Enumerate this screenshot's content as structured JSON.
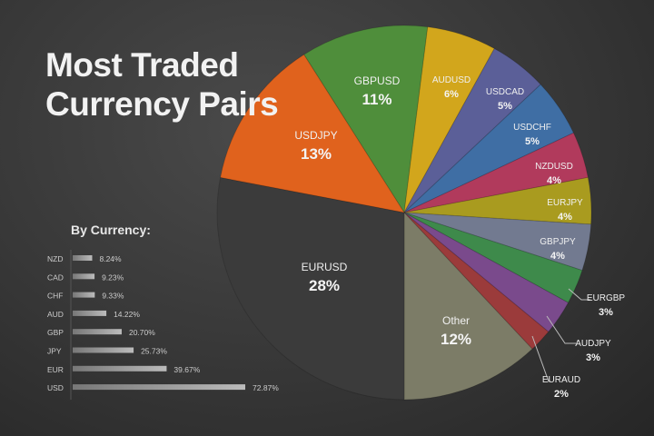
{
  "title_line1": "Most Traded",
  "title_line2": "Currency Pairs",
  "chart_data": [
    {
      "type": "pie",
      "title": "Most Traded Currency Pairs",
      "slices": [
        {
          "label": "GBPUSD",
          "value": 11,
          "color": "#4f8e3b"
        },
        {
          "label": "AUDUSD",
          "value": 6,
          "color": "#d2a61c"
        },
        {
          "label": "USDCAD",
          "value": 5,
          "color": "#5b5f98"
        },
        {
          "label": "USDCHF",
          "value": 5,
          "color": "#3f6ea4"
        },
        {
          "label": "NZDUSD",
          "value": 4,
          "color": "#b13a5c"
        },
        {
          "label": "EURJPY",
          "value": 4,
          "color": "#a99b1f"
        },
        {
          "label": "GBPJPY",
          "value": 4,
          "color": "#727a90"
        },
        {
          "label": "EURGBP",
          "value": 3,
          "color": "#3e8a4b"
        },
        {
          "label": "AUDJPY",
          "value": 3,
          "color": "#7a4a8c"
        },
        {
          "label": "EURAUD",
          "value": 2,
          "color": "#9b3b3b"
        },
        {
          "label": "Other",
          "value": 12,
          "color": "#7c7c67"
        },
        {
          "label": "EURUSD",
          "value": 28,
          "color": "#3b3b3b"
        },
        {
          "label": "USDJPY",
          "value": 13,
          "color": "#e0621d"
        }
      ]
    },
    {
      "type": "bar",
      "orientation": "horizontal",
      "title": "By Currency:",
      "categories": [
        "NZD",
        "CAD",
        "CHF",
        "AUD",
        "GBP",
        "JPY",
        "EUR",
        "USD"
      ],
      "values": [
        8.24,
        9.23,
        9.33,
        14.22,
        20.7,
        25.73,
        39.67,
        72.87
      ],
      "value_labels": [
        "8.24%",
        "9.23%",
        "9.33%",
        "14.22%",
        "20.70%",
        "25.73%",
        "39.67%",
        "72.87%"
      ]
    }
  ]
}
